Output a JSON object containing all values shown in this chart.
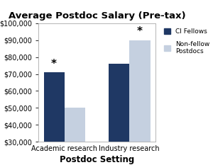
{
  "title": "Average Postdoc Salary (Pre-tax)",
  "xlabel": "Postdoc Setting",
  "categories": [
    "Academic research",
    "Industry research"
  ],
  "ci_fellows": [
    71000,
    76000
  ],
  "non_fellows": [
    50000,
    90000
  ],
  "ci_fellows_color": "#1F3864",
  "non_fellows_color": "#C5D0E0",
  "ylim_min": 30000,
  "ylim_max": 100000,
  "yticks": [
    30000,
    40000,
    50000,
    60000,
    70000,
    80000,
    90000,
    100000
  ],
  "legend_ci": "CI Fellows",
  "legend_non": "Non-fellow\nPostdocs",
  "bar_width": 0.32,
  "background_color": "#ffffff",
  "title_fontsize": 9.5,
  "axis_label_fontsize": 8.5,
  "tick_fontsize": 7,
  "figsize": [
    3.0,
    2.33
  ],
  "dpi": 100
}
